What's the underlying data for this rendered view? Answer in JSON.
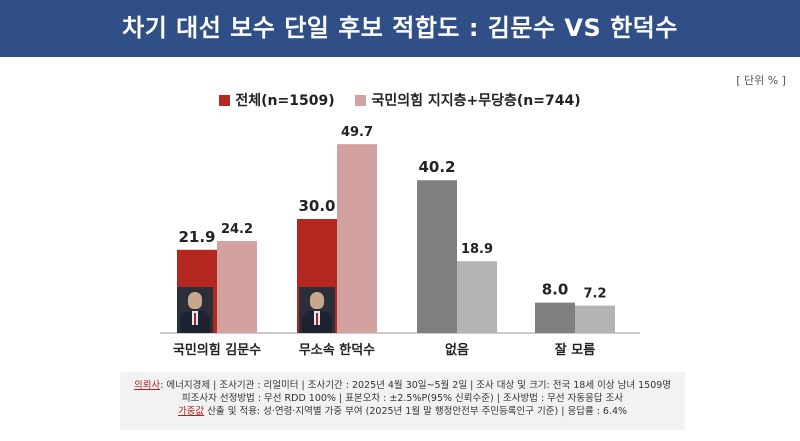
{
  "title": "차기 대선 보수 단일 후보 적합도 : 김문수 VS 한덕수",
  "unit_label": "[ 단위 % ]",
  "chart_data": {
    "type": "bar",
    "categories": [
      "국민의힘 김문수",
      "무소속 한덕수",
      "없음",
      "잘 모름"
    ],
    "series": [
      {
        "name": "전체(n=1509)",
        "values": [
          21.9,
          30.0,
          40.2,
          8.0
        ],
        "colors": [
          "#b5281f",
          "#b5281f",
          "#7f7f7f",
          "#7f7f7f"
        ]
      },
      {
        "name": "국민의힘 지지층+무당층(n=744)",
        "values": [
          24.2,
          49.7,
          18.9,
          7.2
        ],
        "colors": [
          "#d4a1a1",
          "#d4a1a1",
          "#b4b4b4",
          "#b4b4b4"
        ]
      }
    ],
    "value_labels": [
      [
        "21.9",
        "30.0",
        "40.2",
        "8.0"
      ],
      [
        "24.2",
        "49.7",
        "18.9",
        "7.2"
      ]
    ],
    "ylim": [
      0,
      50
    ],
    "legend_colors": [
      "#b5281f",
      "#d4a1a1"
    ],
    "legend_position": "top-center",
    "grid": false
  },
  "footer": {
    "line1_label": "의뢰사",
    "line1_text": ": 에너지경제 | 조사기관 : 리얼미터 | 조사기간 : 2025년 4월 30일~5월 2일 | 조사 대상 및 크기: 전국 18세 이상 남녀 1509명",
    "line2_text": "피조사자 선정방법 : 무선 RDD 100% | 표본오차 : ±2.5%P(95% 신뢰수준) | 조사방법 : 무선 자동응답 조사",
    "line3_label": "가중값",
    "line3_text": " 산출 및 적용: 성·연령·지역별 가중 부여 (2025년 1월 말 행정안전부 주민등록인구 기준) | 응답률 : 6.4%"
  }
}
